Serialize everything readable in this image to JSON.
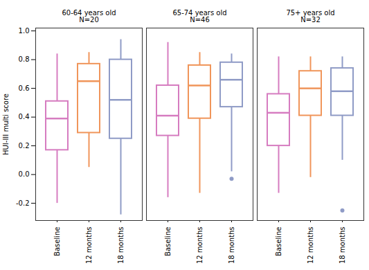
{
  "chart_data": {
    "type": "box",
    "y_label": "HUI-III multi score",
    "categories": [
      "Baseline",
      "12 months",
      "18 months"
    ],
    "colors": [
      "#d67cc0",
      "#f0955a",
      "#8f9bc6"
    ],
    "ylim": [
      -0.32,
      1.02
    ],
    "yticks": [
      -0.2,
      {
        "value": 0,
        "label": "0.0"
      },
      0.2,
      0.4,
      0.6,
      0.8,
      {
        "value": 1,
        "label": "1.0"
      }
    ],
    "grid": false,
    "facets": [
      {
        "title": "60-64 years old",
        "subtitle": "N=20",
        "low": [
          -0.2,
          0.05,
          -0.28
        ],
        "q1": [
          0.17,
          0.29,
          0.25
        ],
        "median": [
          0.39,
          0.65,
          0.52
        ],
        "q3": [
          0.51,
          0.77,
          0.8
        ],
        "high": [
          0.84,
          0.85,
          0.94
        ],
        "outliers": [
          [],
          [],
          []
        ]
      },
      {
        "title": "65-74 years old",
        "subtitle": "N=46",
        "low": [
          -0.16,
          -0.13,
          0.02
        ],
        "q1": [
          0.27,
          0.39,
          0.47
        ],
        "median": [
          0.41,
          0.62,
          0.66
        ],
        "q3": [
          0.62,
          0.76,
          0.78
        ],
        "high": [
          0.92,
          0.85,
          0.84
        ],
        "outliers": [
          [],
          [],
          [
            -0.03
          ]
        ]
      },
      {
        "title": "75+ years old",
        "subtitle": "N=32",
        "low": [
          -0.13,
          -0.02,
          0.1
        ],
        "q1": [
          0.2,
          0.41,
          0.41
        ],
        "median": [
          0.43,
          0.6,
          0.58
        ],
        "q3": [
          0.56,
          0.72,
          0.74
        ],
        "high": [
          0.82,
          0.82,
          0.82
        ],
        "outliers": [
          [],
          [],
          [
            -0.25
          ]
        ]
      }
    ]
  }
}
